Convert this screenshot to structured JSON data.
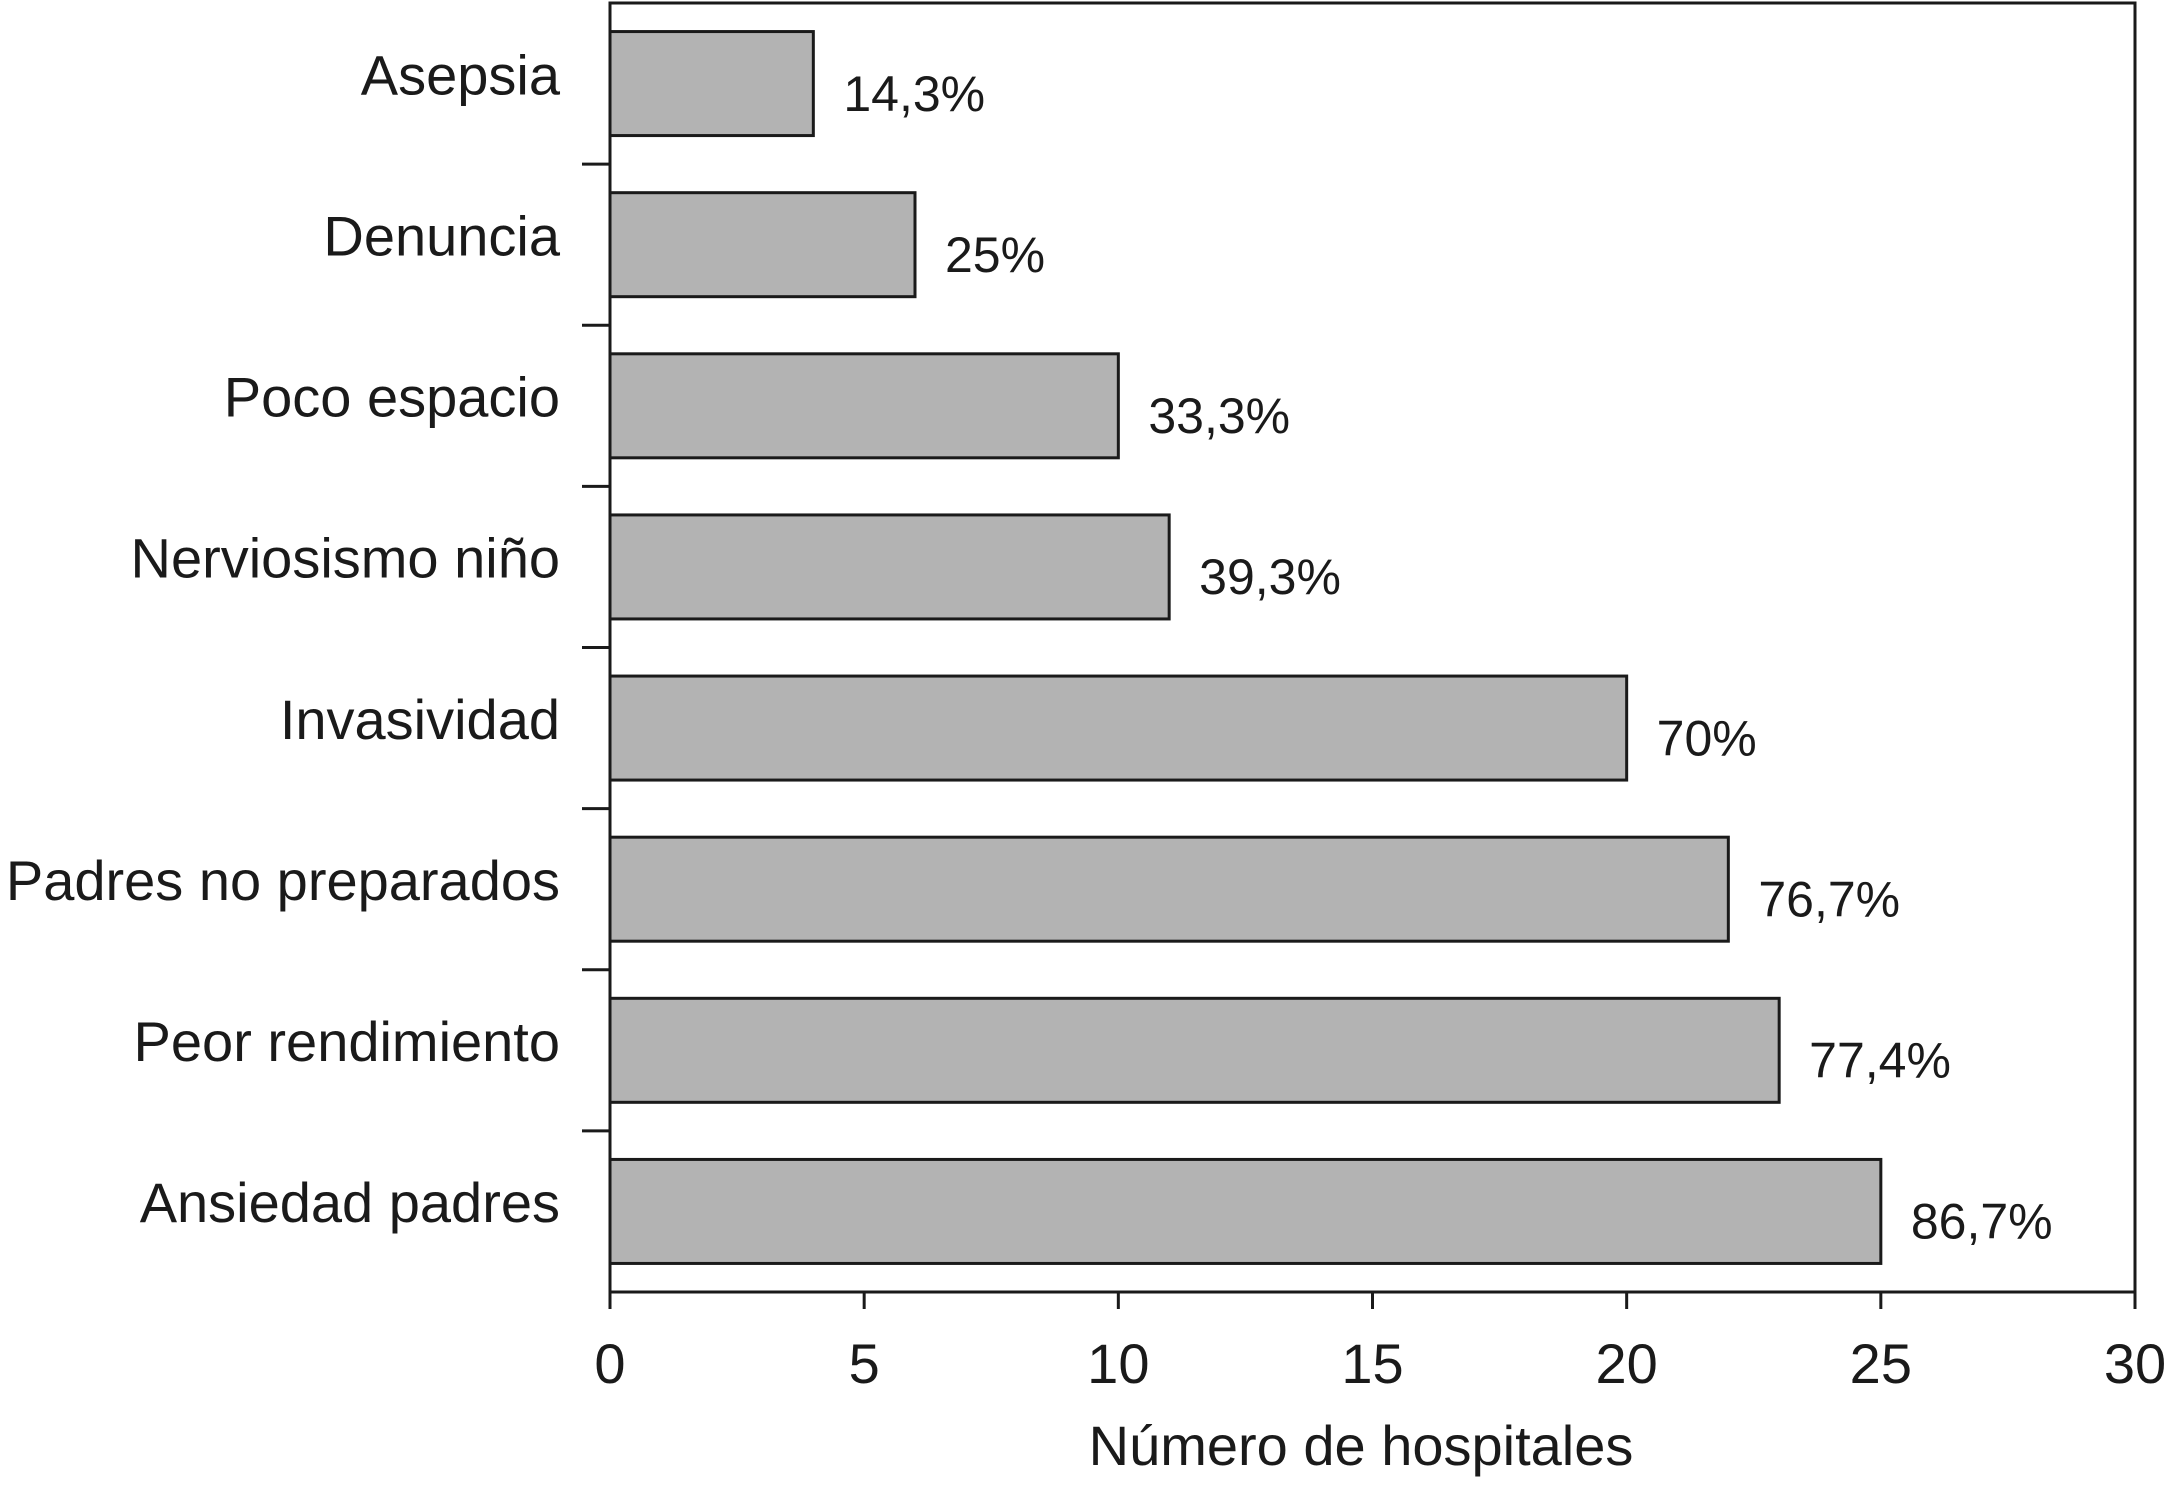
{
  "chart_data": {
    "type": "barh",
    "categories": [
      "Asepsia",
      "Denuncia",
      "Poco espacio",
      "Nerviosismo niño",
      "Invasividad",
      "Padres no preparados",
      "Peor rendimiento",
      "Ansiedad padres"
    ],
    "values": [
      4,
      6,
      10,
      11,
      20,
      22,
      23,
      25
    ],
    "annotations": [
      "14,3%",
      "25%",
      "33,3%",
      "39,3%",
      "70%",
      "76,7%",
      "77,4%",
      "86,7%"
    ],
    "color": "#b3b3b3",
    "xlabel": "Número de hospitales",
    "xlim": [
      0,
      30
    ],
    "xticks": [
      0,
      5,
      10,
      15,
      20,
      25,
      30
    ],
    "grid": false
  }
}
